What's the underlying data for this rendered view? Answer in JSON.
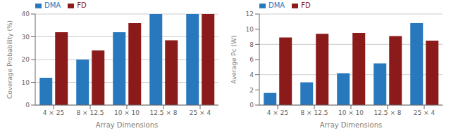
{
  "chart_data": [
    {
      "type": "bar",
      "categories": [
        "4 × 25",
        "8 × 12.5",
        "10 × 10",
        "12.5 × 8",
        "25 × 4"
      ],
      "series": [
        {
          "name": "DMA",
          "color": "#2878BE",
          "values": [
            12,
            20,
            32,
            40,
            40
          ]
        },
        {
          "name": "FD",
          "color": "#8B1A1A",
          "values": [
            32,
            24,
            36,
            28.5,
            40
          ]
        }
      ],
      "x_label": "Array Dimensions",
      "y_label": "Coverage Probability (%)",
      "ylim": [
        0,
        40
      ],
      "yticks": [
        0,
        10,
        20,
        30,
        40
      ],
      "grid": true,
      "legend": "upper left"
    },
    {
      "type": "bar",
      "categories": [
        "4 × 25",
        "8 × 12.5",
        "10 × 10",
        "12.5 × 8",
        "25 × 4"
      ],
      "series": [
        {
          "name": "DMA",
          "color": "#2878BE",
          "values": [
            1.6,
            3.0,
            4.2,
            5.5,
            10.8
          ]
        },
        {
          "name": "FD",
          "color": "#8B1A1A",
          "values": [
            8.9,
            9.4,
            9.5,
            9.1,
            8.5
          ]
        }
      ],
      "x_label": "Array Dimensions",
      "y_label": "Average Pc (W)",
      "ylim": [
        0,
        12
      ],
      "yticks": [
        0,
        2,
        4,
        6,
        8,
        10,
        12
      ],
      "grid": true,
      "legend": "upper left"
    }
  ]
}
